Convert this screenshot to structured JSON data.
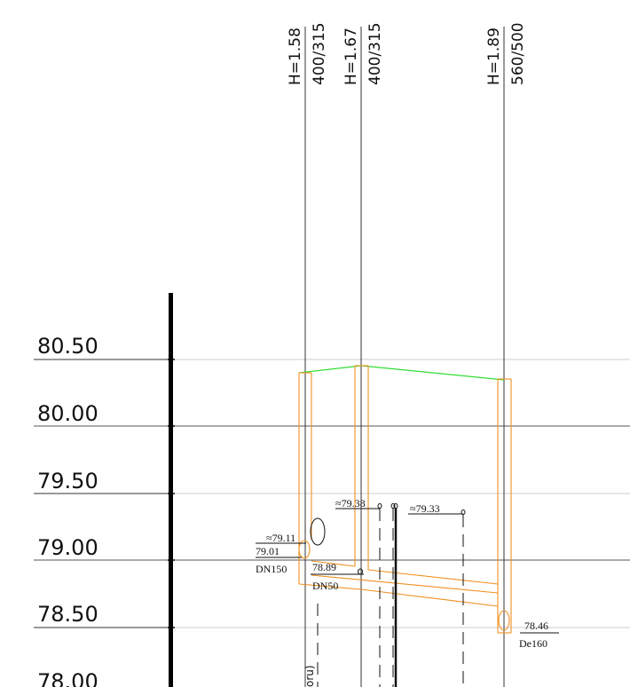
{
  "elevation_labels": [
    "80.50",
    "80.00",
    "79.50",
    "79.00",
    "78.50",
    "78.00"
  ],
  "manholes": [
    {
      "depth": "H=1.58",
      "size": "400/315"
    },
    {
      "depth": "H=1.67",
      "size": "400/315"
    },
    {
      "depth": "H=1.89",
      "size": "560/500"
    }
  ],
  "annotations": {
    "pipe1_approx": "≈79.11",
    "pipe1_level": "79.01",
    "pipe1_dn": "DN150",
    "pipe2_level": "78.89",
    "pipe2_dn": "DN50",
    "top1_approx": "≈79.38",
    "top2_approx": "≈79.33",
    "outlet_level": "78.46",
    "outlet_de": "De160",
    "vertical_fragment": "oru)"
  },
  "colors": {
    "ground_line": "#33dd33",
    "pipe_outline": "#f09020",
    "grid_major": "#555555",
    "grid_minor": "#cccccc",
    "ink": "#111111"
  }
}
